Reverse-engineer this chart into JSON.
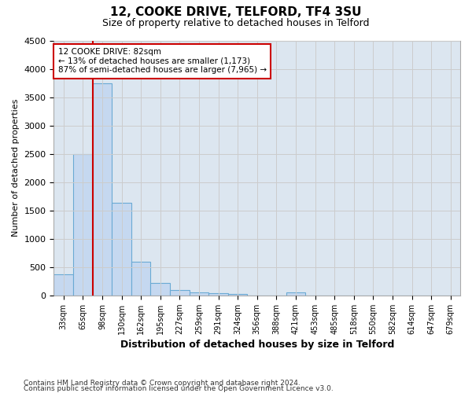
{
  "title1": "12, COOKE DRIVE, TELFORD, TF4 3SU",
  "title2": "Size of property relative to detached houses in Telford",
  "xlabel": "Distribution of detached houses by size in Telford",
  "ylabel": "Number of detached properties",
  "categories": [
    "33sqm",
    "65sqm",
    "98sqm",
    "130sqm",
    "162sqm",
    "195sqm",
    "227sqm",
    "259sqm",
    "291sqm",
    "324sqm",
    "356sqm",
    "388sqm",
    "421sqm",
    "453sqm",
    "485sqm",
    "518sqm",
    "550sqm",
    "582sqm",
    "614sqm",
    "647sqm",
    "679sqm"
  ],
  "values": [
    370,
    2500,
    3750,
    1640,
    590,
    220,
    100,
    55,
    35,
    30,
    0,
    0,
    55,
    0,
    0,
    0,
    0,
    0,
    0,
    0,
    0
  ],
  "bar_color": "#c5d8f0",
  "bar_edge_color": "#6aaad4",
  "property_line_x": 1.5,
  "annotation_line1": "12 COOKE DRIVE: 82sqm",
  "annotation_line2": "← 13% of detached houses are smaller (1,173)",
  "annotation_line3": "87% of semi-detached houses are larger (7,965) →",
  "box_color": "#cc0000",
  "ylim": [
    0,
    4500
  ],
  "yticks": [
    0,
    500,
    1000,
    1500,
    2000,
    2500,
    3000,
    3500,
    4000,
    4500
  ],
  "grid_color": "#cccccc",
  "bg_color": "#dce6f0",
  "footer1": "Contains HM Land Registry data © Crown copyright and database right 2024.",
  "footer2": "Contains public sector information licensed under the Open Government Licence v3.0."
}
